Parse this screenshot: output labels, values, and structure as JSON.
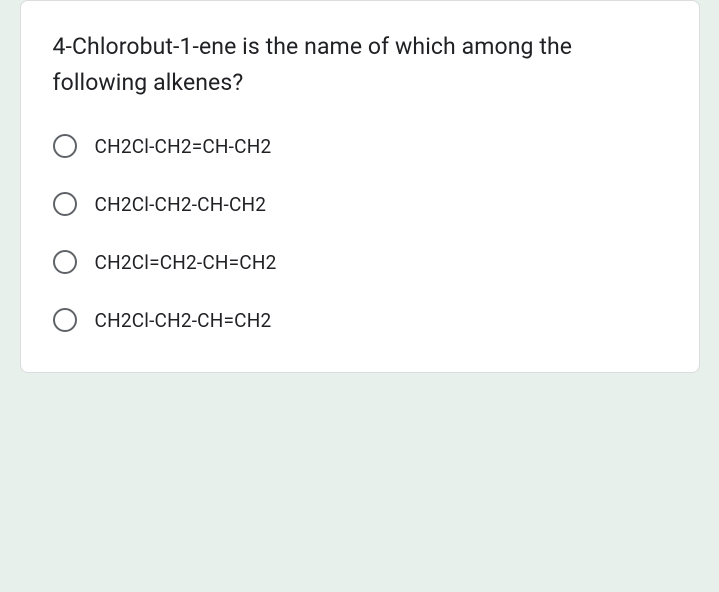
{
  "question": "4-Chlorobut-1-ene is the name of which among the following alkenes?",
  "options": [
    {
      "label": "CH2Cl-CH2=CH-CH2"
    },
    {
      "label": "CH2Cl-CH2-CH-CH2"
    },
    {
      "label": "CH2Cl=CH2-CH=CH2"
    },
    {
      "label": "CH2Cl-CH2-CH=CH2"
    }
  ],
  "colors": {
    "page_bg": "#e8f0ec",
    "card_bg": "#ffffff",
    "card_border": "#dadce0",
    "text": "#202124",
    "radio_border": "#5f6368"
  }
}
